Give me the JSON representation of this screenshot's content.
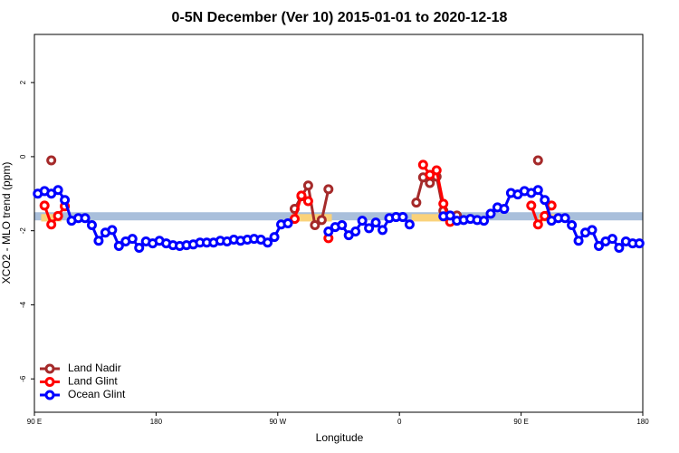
{
  "chart_data": {
    "type": "line",
    "title": "0-5N December (Ver 10)   2015-01-01 to 2020-12-18",
    "x_label": "Longitude",
    "y_label": "XCO2 - MLO trend (ppm)",
    "xlim": [
      90,
      540
    ],
    "ylim": [
      -6.9,
      3.3
    ],
    "xticks": [
      {
        "value": 90,
        "label": "90 E"
      },
      180,
      {
        "value": 270,
        "label": "90 W"
      },
      {
        "value": 360,
        "label": "0"
      },
      {
        "value": 450,
        "label": "90 E"
      },
      {
        "value": 540,
        "label": "180"
      }
    ],
    "yticks": [
      -6,
      -4,
      -2,
      0,
      2
    ],
    "legend": "bottom-left",
    "band": {
      "ylim": [
        -1.72,
        -1.5
      ],
      "color": "#a9bfdb"
    },
    "land_band": {
      "ylim": [
        -1.75,
        -1.55
      ],
      "color": "#fad27a",
      "xranges": [
        [
          95,
          110
        ],
        [
          280,
          310
        ],
        [
          369,
          406
        ],
        [
          463,
          476
        ]
      ]
    },
    "x": [
      92.5,
      97.5,
      102.5,
      107.5,
      112.5,
      117.5,
      122.5,
      127.5,
      132.5,
      137.5,
      142.5,
      147.5,
      152.5,
      157.5,
      162.5,
      167.5,
      172.5,
      177.5,
      182.5,
      187.5,
      192.5,
      197.5,
      202.5,
      207.5,
      212.5,
      217.5,
      222.5,
      227.5,
      232.5,
      237.5,
      242.5,
      247.5,
      252.5,
      257.5,
      262.5,
      267.5,
      272.5,
      277.5,
      282.5,
      287.5,
      292.5,
      297.5,
      302.5,
      307.5,
      312.5,
      317.5,
      322.5,
      327.5,
      332.5,
      337.5,
      342.5,
      347.5,
      352.5,
      357.5,
      362.5,
      367.5,
      372.5,
      377.5,
      382.5,
      387.5,
      392.5,
      397.5,
      402.5,
      407.5,
      412.5,
      417.5,
      422.5,
      427.5,
      432.5,
      437.5,
      442.5,
      447.5,
      452.5,
      457.5,
      462.5,
      467.5,
      472.5,
      477.5,
      482.5,
      487.5,
      492.5,
      497.5,
      502.5,
      507.5,
      512.5,
      517.5,
      522.5,
      527.5,
      532.5,
      537.5
    ],
    "series": [
      {
        "name": "Land Nadir",
        "color": "#a52a2a",
        "values": [
          null,
          null,
          -0.1,
          null,
          null,
          null,
          null,
          null,
          null,
          null,
          null,
          null,
          null,
          null,
          null,
          null,
          null,
          null,
          null,
          null,
          null,
          null,
          null,
          null,
          null,
          null,
          null,
          null,
          null,
          null,
          null,
          null,
          null,
          null,
          null,
          null,
          null,
          null,
          -1.41,
          -1.07,
          -0.78,
          -1.85,
          -1.71,
          -0.88,
          null,
          null,
          null,
          null,
          null,
          null,
          null,
          null,
          null,
          null,
          null,
          null,
          -1.24,
          -0.56,
          -0.71,
          -0.54,
          -1.46,
          -1.66,
          -1.59,
          null,
          null,
          null,
          null,
          null,
          null,
          null,
          null,
          null,
          null,
          null,
          -0.1,
          null,
          null,
          null,
          null,
          null,
          null,
          null,
          null,
          null,
          null,
          null,
          null,
          null,
          null,
          null
        ]
      },
      {
        "name": "Land Glint",
        "color": "#ff0000",
        "values": [
          null,
          -1.32,
          -1.83,
          -1.6,
          -1.34,
          null,
          null,
          null,
          null,
          null,
          null,
          null,
          null,
          null,
          null,
          null,
          null,
          null,
          null,
          null,
          null,
          null,
          null,
          null,
          null,
          null,
          null,
          null,
          null,
          null,
          null,
          null,
          null,
          null,
          null,
          null,
          null,
          null,
          -1.68,
          -1.05,
          -1.2,
          null,
          null,
          -2.2,
          null,
          null,
          null,
          null,
          null,
          null,
          null,
          null,
          null,
          null,
          null,
          null,
          null,
          -0.22,
          -0.49,
          -0.37,
          -1.27,
          -1.76,
          null,
          null,
          null,
          null,
          null,
          null,
          null,
          null,
          null,
          null,
          null,
          -1.32,
          -1.83,
          -1.6,
          -1.32,
          null,
          null,
          null,
          null,
          null,
          null,
          null,
          null,
          null,
          null,
          null,
          null,
          null
        ]
      },
      {
        "name": "Ocean Glint",
        "color": "#0000ff",
        "values": [
          -1.0,
          -0.93,
          -1.0,
          -0.9,
          -1.17,
          -1.73,
          -1.66,
          -1.66,
          -1.85,
          -2.27,
          -2.05,
          -1.98,
          -2.41,
          -2.29,
          -2.22,
          -2.46,
          -2.29,
          -2.34,
          -2.27,
          -2.34,
          -2.39,
          -2.41,
          -2.39,
          -2.37,
          -2.32,
          -2.32,
          -2.32,
          -2.27,
          -2.29,
          -2.24,
          -2.27,
          -2.24,
          -2.22,
          -2.24,
          -2.32,
          -2.17,
          -1.83,
          -1.8,
          null,
          null,
          null,
          null,
          null,
          -2.02,
          -1.9,
          -1.85,
          -2.12,
          -2.02,
          -1.73,
          -1.93,
          -1.78,
          -1.98,
          -1.66,
          -1.63,
          -1.63,
          -1.83,
          null,
          null,
          null,
          null,
          -1.61,
          -1.59,
          -1.73,
          -1.71,
          -1.68,
          -1.71,
          -1.73,
          -1.54,
          -1.37,
          -1.41,
          -0.98,
          -1.02,
          -0.93,
          -0.98,
          -0.9,
          -1.17,
          -1.73,
          -1.66,
          -1.66,
          -1.85,
          -2.27,
          -2.05,
          -1.98,
          -2.41,
          -2.29,
          -2.22,
          -2.46,
          -2.29,
          -2.34,
          -2.34
        ]
      }
    ]
  }
}
